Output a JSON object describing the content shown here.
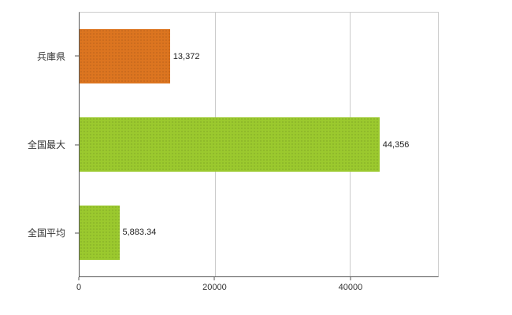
{
  "chart_data": {
    "type": "bar",
    "orientation": "horizontal",
    "title": "",
    "xlabel": "",
    "ylabel": "",
    "categories": [
      "兵庫県",
      "全国最大",
      "全国平均"
    ],
    "values": [
      13372,
      44356,
      5883.34
    ],
    "value_labels": [
      "13,372",
      "44,356",
      "5,883.34"
    ],
    "bar_colors": [
      "#dc7520",
      "#9bc92e",
      "#9bc92e"
    ],
    "x_ticks": [
      0,
      20000,
      40000
    ],
    "x_tick_labels": [
      "0",
      "20000",
      "40000"
    ],
    "xlim": [
      0,
      53000
    ],
    "grid": true,
    "gridline_color": "#cccccc",
    "axis_color": "#555555",
    "background": "#ffffff",
    "legend": "none"
  }
}
